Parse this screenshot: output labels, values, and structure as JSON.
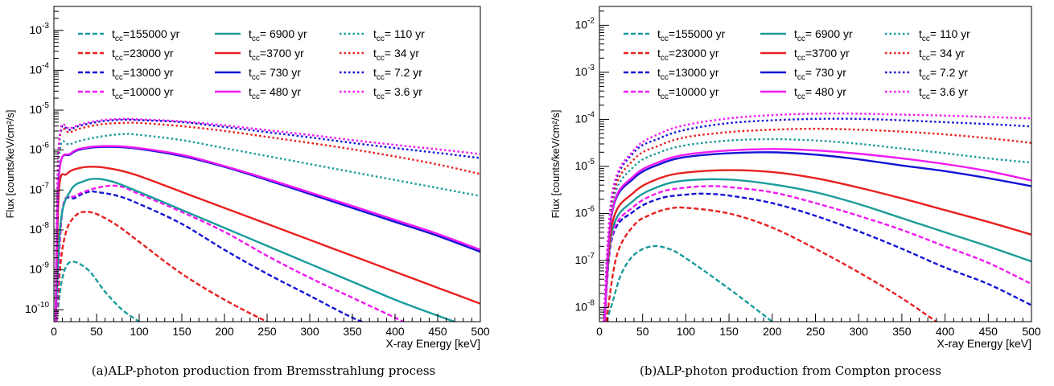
{
  "captions": {
    "a": "(a)ALP-photon production from Bremsstrahlung process",
    "b": "(b)ALP-photon production from Compton process"
  },
  "legend_labels": {
    "a": [
      "155000 yr",
      "23000 yr",
      "13000 yr",
      "10000 yr",
      " 6900 yr",
      "3700 yr",
      " 730 yr",
      " 480 yr",
      " 110 yr",
      " 34 yr",
      " 7.2 yr",
      " 3.6 yr"
    ],
    "b": [
      "155000 yr",
      "23000 yr",
      "13000 yr",
      "10000 yr",
      " 6900 yr",
      "3700 yr",
      " 730 yr",
      " 480 yr",
      " 110 yr",
      " 34 yr",
      " 7.2 yr",
      " 3.6 yr"
    ]
  },
  "colors": {
    "teal": "#1a9c9c",
    "red": "#e8201f",
    "blue": "#1414d6",
    "magenta": "#f219f2"
  },
  "chart_data": [
    {
      "type": "line",
      "xlabel": "X-ray Energy [keV]",
      "ylabel": "Flux [counts/keV/cm²/s]",
      "xlim": [
        0,
        500
      ],
      "ylim_log10": [
        -10.3,
        -2.4
      ],
      "y_scale": "log",
      "x_ticks": [
        0,
        50,
        100,
        150,
        200,
        250,
        300,
        350,
        400,
        450,
        500
      ],
      "y_tick_exponents": [
        -10,
        -9,
        -8,
        -7,
        -6,
        -5,
        -4,
        -3
      ],
      "legend_prefix": "t",
      "legend_subscript": "cc",
      "series": [
        {
          "name": "155000 yr",
          "color": "#1a9c9c",
          "style": "dashed",
          "x": [
            3,
            10,
            20,
            40,
            60,
            80,
            100,
            110
          ],
          "y": [
            -10.3,
            -9.2,
            -8.8,
            -9.0,
            -9.55,
            -10.0,
            -10.3,
            -10.45
          ]
        },
        {
          "name": "23000 yr",
          "color": "#e8201f",
          "style": "dashed",
          "x": [
            3,
            8,
            15,
            25,
            35,
            50,
            75,
            100,
            150,
            200,
            250,
            270
          ],
          "y": [
            -10.3,
            -8.8,
            -8.0,
            -7.65,
            -7.55,
            -7.6,
            -7.9,
            -8.3,
            -9.1,
            -9.75,
            -10.3,
            -10.45
          ]
        },
        {
          "name": "13000 yr",
          "color": "#1414d6",
          "style": "dashed",
          "x": [
            3,
            10,
            25,
            40,
            50,
            75,
            100,
            150,
            200,
            250,
            300,
            350,
            380
          ],
          "y": [
            -10.3,
            -7.5,
            -7.2,
            -7.05,
            -7.05,
            -7.15,
            -7.35,
            -7.85,
            -8.5,
            -9.1,
            -9.65,
            -10.2,
            -10.45
          ]
        },
        {
          "name": "10000 yr",
          "color": "#f219f2",
          "style": "dashed",
          "x": [
            3,
            10,
            25,
            50,
            75,
            100,
            150,
            200,
            250,
            300,
            350,
            400,
            425
          ],
          "y": [
            -10.3,
            -7.5,
            -7.15,
            -6.95,
            -6.9,
            -7.1,
            -7.55,
            -8.05,
            -8.65,
            -9.2,
            -9.7,
            -10.2,
            -10.45
          ]
        },
        {
          "name": "6900 yr",
          "color": "#1a9c9c",
          "style": "solid",
          "x": [
            2,
            8,
            20,
            35,
            50,
            70,
            100,
            150,
            200,
            250,
            300,
            350,
            400,
            450,
            490,
            500
          ],
          "y": [
            -10.3,
            -7.8,
            -7.0,
            -6.78,
            -6.72,
            -6.8,
            -7.05,
            -7.5,
            -7.95,
            -8.4,
            -8.85,
            -9.3,
            -9.75,
            -10.15,
            -10.45,
            -10.5
          ]
        },
        {
          "name": "3700 yr",
          "color": "#e8201f",
          "style": "solid",
          "x": [
            2,
            6,
            15,
            30,
            50,
            75,
            100,
            150,
            200,
            250,
            300,
            350,
            400,
            450,
            500
          ],
          "y": [
            -10.3,
            -7.0,
            -6.6,
            -6.45,
            -6.42,
            -6.5,
            -6.65,
            -7.05,
            -7.45,
            -7.85,
            -8.25,
            -8.65,
            -9.05,
            -9.45,
            -9.85
          ]
        },
        {
          "name": "730 yr",
          "color": "#1414d6",
          "style": "solid",
          "x": [
            2,
            6,
            20,
            40,
            70,
            100,
            150,
            200,
            250,
            300,
            350,
            400,
            450,
            500
          ],
          "y": [
            -10.3,
            -6.6,
            -6.1,
            -5.95,
            -5.92,
            -5.97,
            -6.15,
            -6.42,
            -6.75,
            -7.1,
            -7.45,
            -7.8,
            -8.15,
            -8.55
          ]
        },
        {
          "name": "480 yr",
          "color": "#f219f2",
          "style": "solid",
          "x": [
            2,
            6,
            20,
            40,
            70,
            100,
            150,
            200,
            250,
            300,
            350,
            400,
            450,
            500
          ],
          "y": [
            -10.3,
            -6.6,
            -6.08,
            -5.93,
            -5.9,
            -5.95,
            -6.12,
            -6.4,
            -6.72,
            -7.06,
            -7.4,
            -7.75,
            -8.1,
            -8.5
          ]
        },
        {
          "name": "110 yr",
          "color": "#1a9c9c",
          "style": "dotted",
          "x": [
            2,
            6,
            20,
            50,
            80,
            100,
            150,
            200,
            250,
            300,
            350,
            400,
            450,
            500
          ],
          "y": [
            -10.3,
            -6.2,
            -5.85,
            -5.68,
            -5.6,
            -5.62,
            -5.75,
            -5.95,
            -6.15,
            -6.35,
            -6.55,
            -6.75,
            -6.95,
            -7.15
          ]
        },
        {
          "name": "34 yr",
          "color": "#e8201f",
          "style": "dotted",
          "x": [
            2,
            6,
            20,
            50,
            80,
            100,
            150,
            200,
            250,
            300,
            350,
            400,
            450,
            500
          ],
          "y": [
            -10.3,
            -5.9,
            -5.55,
            -5.37,
            -5.32,
            -5.32,
            -5.4,
            -5.52,
            -5.67,
            -5.82,
            -5.98,
            -6.16,
            -6.36,
            -6.6
          ]
        },
        {
          "name": "7.2 yr",
          "color": "#1414d6",
          "style": "dotted",
          "x": [
            2,
            6,
            20,
            50,
            80,
            100,
            150,
            200,
            250,
            300,
            350,
            400,
            450,
            500
          ],
          "y": [
            -10.3,
            -5.85,
            -5.48,
            -5.3,
            -5.24,
            -5.25,
            -5.3,
            -5.42,
            -5.55,
            -5.68,
            -5.82,
            -5.95,
            -6.07,
            -6.2
          ]
        },
        {
          "name": "3.6 yr",
          "color": "#f219f2",
          "style": "dotted",
          "x": [
            2,
            6,
            20,
            50,
            80,
            100,
            150,
            200,
            250,
            300,
            350,
            400,
            450,
            500
          ],
          "y": [
            -10.3,
            -5.8,
            -5.45,
            -5.27,
            -5.22,
            -5.23,
            -5.28,
            -5.38,
            -5.5,
            -5.62,
            -5.75,
            -5.87,
            -5.98,
            -6.1
          ]
        }
      ]
    },
    {
      "type": "line",
      "xlabel": "X-ray Energy [keV]",
      "ylabel": "Flux [counts/keV/cm²/s]",
      "xlim": [
        0,
        500
      ],
      "ylim_log10": [
        -8.3,
        -1.6
      ],
      "y_scale": "log",
      "x_ticks": [
        0,
        50,
        100,
        150,
        200,
        250,
        300,
        350,
        400,
        450,
        500
      ],
      "y_tick_exponents": [
        -8,
        -7,
        -6,
        -5,
        -4,
        -3,
        -2
      ],
      "legend_prefix": "t",
      "legend_subscript": "cc",
      "series": [
        {
          "name": "155000 yr",
          "color": "#1a9c9c",
          "style": "dashed",
          "x": [
            8,
            15,
            25,
            40,
            60,
            80,
            100,
            150,
            200,
            210
          ],
          "y": [
            -8.3,
            -7.9,
            -7.3,
            -6.88,
            -6.7,
            -6.75,
            -6.95,
            -7.6,
            -8.3,
            -8.45
          ]
        },
        {
          "name": "23000 yr",
          "color": "#e8201f",
          "style": "dashed",
          "x": [
            8,
            20,
            40,
            60,
            80,
            100,
            150,
            200,
            250,
            300,
            350,
            390,
            400
          ],
          "y": [
            -8.3,
            -6.9,
            -6.25,
            -6.02,
            -5.9,
            -5.88,
            -6.0,
            -6.3,
            -6.75,
            -7.25,
            -7.8,
            -8.3,
            -8.4
          ]
        },
        {
          "name": "13000 yr",
          "color": "#1414d6",
          "style": "dashed",
          "x": [
            6,
            15,
            40,
            70,
            100,
            120,
            150,
            200,
            250,
            300,
            350,
            400,
            450,
            500
          ],
          "y": [
            -8.3,
            -6.5,
            -5.95,
            -5.68,
            -5.6,
            -5.58,
            -5.62,
            -5.78,
            -6.05,
            -6.38,
            -6.75,
            -7.15,
            -7.5,
            -7.95
          ]
        },
        {
          "name": "10000 yr",
          "color": "#f219f2",
          "style": "dashed",
          "x": [
            6,
            15,
            40,
            70,
            100,
            130,
            150,
            200,
            250,
            300,
            350,
            400,
            450,
            500
          ],
          "y": [
            -8.3,
            -6.45,
            -5.85,
            -5.55,
            -5.45,
            -5.42,
            -5.44,
            -5.55,
            -5.78,
            -6.05,
            -6.35,
            -6.7,
            -7.05,
            -7.5
          ]
        },
        {
          "name": "6900 yr",
          "color": "#1a9c9c",
          "style": "solid",
          "x": [
            6,
            15,
            40,
            70,
            100,
            150,
            200,
            250,
            300,
            350,
            400,
            450,
            500
          ],
          "y": [
            -8.3,
            -6.35,
            -5.72,
            -5.42,
            -5.3,
            -5.28,
            -5.38,
            -5.55,
            -5.8,
            -6.1,
            -6.4,
            -6.7,
            -7.02
          ]
        },
        {
          "name": "3700 yr",
          "color": "#e8201f",
          "style": "solid",
          "x": [
            6,
            15,
            40,
            70,
            100,
            150,
            200,
            250,
            300,
            350,
            400,
            450,
            500
          ],
          "y": [
            -8.3,
            -6.2,
            -5.55,
            -5.25,
            -5.13,
            -5.08,
            -5.12,
            -5.25,
            -5.45,
            -5.68,
            -5.93,
            -6.18,
            -6.45
          ]
        },
        {
          "name": "730 yr",
          "color": "#1414d6",
          "style": "solid",
          "x": [
            6,
            15,
            40,
            70,
            100,
            150,
            200,
            250,
            300,
            350,
            400,
            450,
            500
          ],
          "y": [
            -8.3,
            -5.95,
            -5.25,
            -4.95,
            -4.8,
            -4.72,
            -4.7,
            -4.75,
            -4.85,
            -4.98,
            -5.1,
            -5.25,
            -5.42
          ]
        },
        {
          "name": "480 yr",
          "color": "#f219f2",
          "style": "solid",
          "x": [
            6,
            15,
            40,
            70,
            100,
            150,
            200,
            250,
            300,
            350,
            400,
            450,
            500
          ],
          "y": [
            -8.3,
            -5.92,
            -5.2,
            -4.9,
            -4.75,
            -4.66,
            -4.63,
            -4.66,
            -4.73,
            -4.83,
            -4.95,
            -5.1,
            -5.3
          ]
        },
        {
          "name": "110 yr",
          "color": "#1a9c9c",
          "style": "dotted",
          "x": [
            5,
            15,
            40,
            70,
            100,
            150,
            200,
            250,
            300,
            350,
            400,
            450,
            500
          ],
          "y": [
            -8.3,
            -5.8,
            -5.0,
            -4.7,
            -4.55,
            -4.45,
            -4.42,
            -4.45,
            -4.52,
            -4.62,
            -4.72,
            -4.83,
            -4.92
          ]
        },
        {
          "name": "34 yr",
          "color": "#e8201f",
          "style": "dotted",
          "x": [
            5,
            15,
            40,
            70,
            100,
            150,
            200,
            250,
            300,
            350,
            400,
            450,
            500
          ],
          "y": [
            -8.3,
            -5.7,
            -4.85,
            -4.55,
            -4.38,
            -4.27,
            -4.22,
            -4.2,
            -4.22,
            -4.26,
            -4.32,
            -4.4,
            -4.5
          ]
        },
        {
          "name": "7.2 yr",
          "color": "#1414d6",
          "style": "dotted",
          "x": [
            5,
            15,
            40,
            70,
            100,
            150,
            200,
            250,
            300,
            350,
            400,
            450,
            500
          ],
          "y": [
            -8.3,
            -5.6,
            -4.7,
            -4.4,
            -4.22,
            -4.08,
            -4.02,
            -3.99,
            -3.99,
            -4.02,
            -4.06,
            -4.1,
            -4.15
          ]
        },
        {
          "name": "3.6 yr",
          "color": "#f219f2",
          "style": "dotted",
          "x": [
            5,
            15,
            40,
            70,
            100,
            150,
            200,
            250,
            300,
            350,
            400,
            450,
            500
          ],
          "y": [
            -8.3,
            -5.55,
            -4.65,
            -4.3,
            -4.12,
            -3.98,
            -3.91,
            -3.88,
            -3.88,
            -3.9,
            -3.92,
            -3.95,
            -3.98
          ]
        }
      ]
    }
  ]
}
